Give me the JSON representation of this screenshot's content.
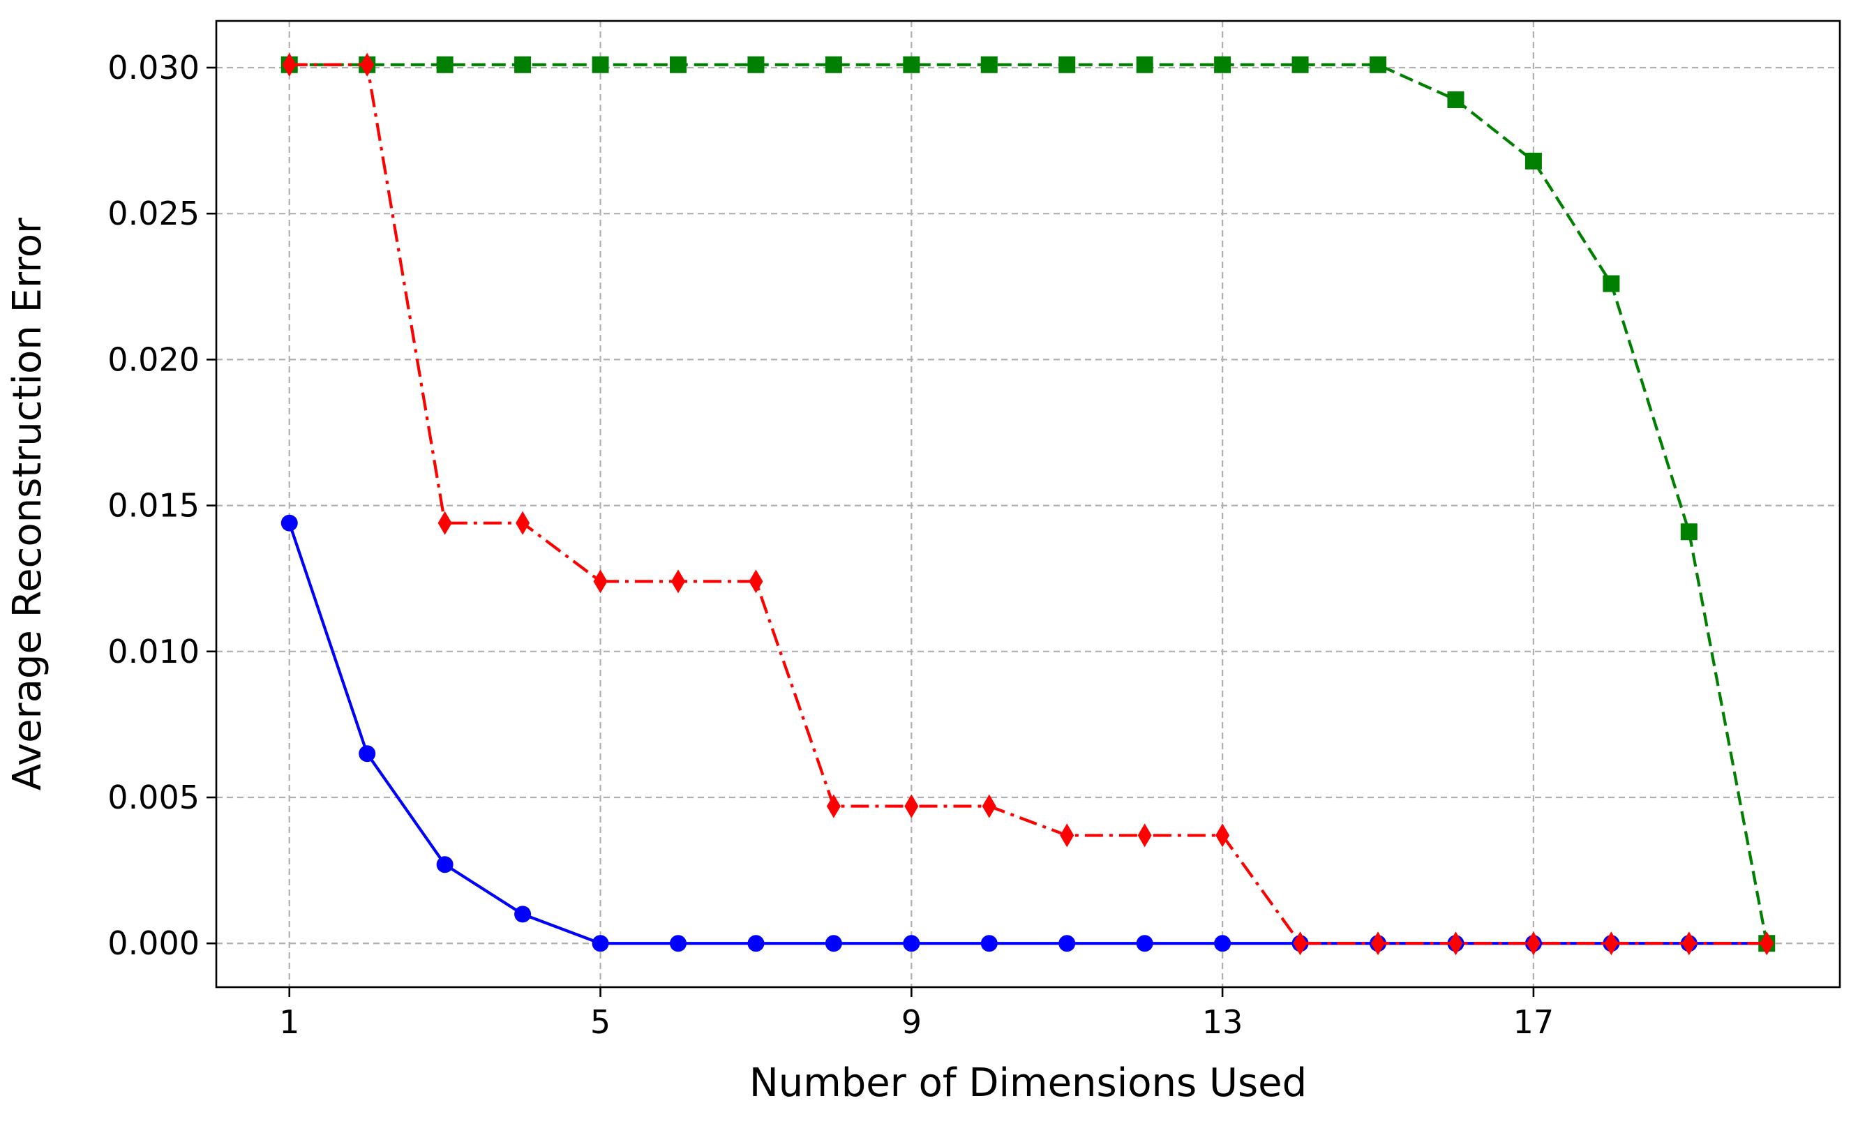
{
  "chart_data": {
    "type": "line",
    "title": "",
    "xlabel": "Number of Dimensions Used",
    "ylabel": "Average Reconstruction Error",
    "x": [
      1,
      2,
      3,
      4,
      5,
      6,
      7,
      8,
      9,
      10,
      11,
      12,
      13,
      14,
      15,
      16,
      17,
      18,
      19,
      20
    ],
    "xlim": [
      0.06,
      20.94
    ],
    "ylim": [
      -0.0015,
      0.0316
    ],
    "xticks": [
      1,
      5,
      9,
      13,
      17
    ],
    "xtick_labels": [
      "1",
      "5",
      "9",
      "13",
      "17"
    ],
    "yticks": [
      0.0,
      0.005,
      0.01,
      0.015,
      0.02,
      0.025,
      0.03
    ],
    "ytick_labels": [
      "0.000",
      "0.005",
      "0.010",
      "0.015",
      "0.020",
      "0.025",
      "0.030"
    ],
    "grid": true,
    "series": [
      {
        "color": "#0000ff",
        "line_style": "solid",
        "marker": "circle",
        "values": [
          0.0144,
          0.0065,
          0.0027,
          0.001,
          0.0,
          0.0,
          0.0,
          0.0,
          0.0,
          0.0,
          0.0,
          0.0,
          0.0,
          0.0,
          0.0,
          0.0,
          0.0,
          0.0,
          0.0,
          0.0
        ]
      },
      {
        "color": "#008000",
        "line_style": "dashed",
        "marker": "square",
        "values": [
          0.0301,
          0.0301,
          0.0301,
          0.0301,
          0.0301,
          0.0301,
          0.0301,
          0.0301,
          0.0301,
          0.0301,
          0.0301,
          0.0301,
          0.0301,
          0.0301,
          0.0301,
          0.0289,
          0.0268,
          0.0226,
          0.0141,
          0.0
        ]
      },
      {
        "color": "#ff0000",
        "line_style": "dashdot",
        "marker": "thin_diamond",
        "values": [
          0.0301,
          0.0301,
          0.0144,
          0.0144,
          0.0124,
          0.0124,
          0.0124,
          0.0047,
          0.0047,
          0.0047,
          0.0037,
          0.0037,
          0.0037,
          0.0,
          0.0,
          0.0,
          0.0,
          0.0,
          0.0,
          0.0
        ]
      }
    ]
  }
}
